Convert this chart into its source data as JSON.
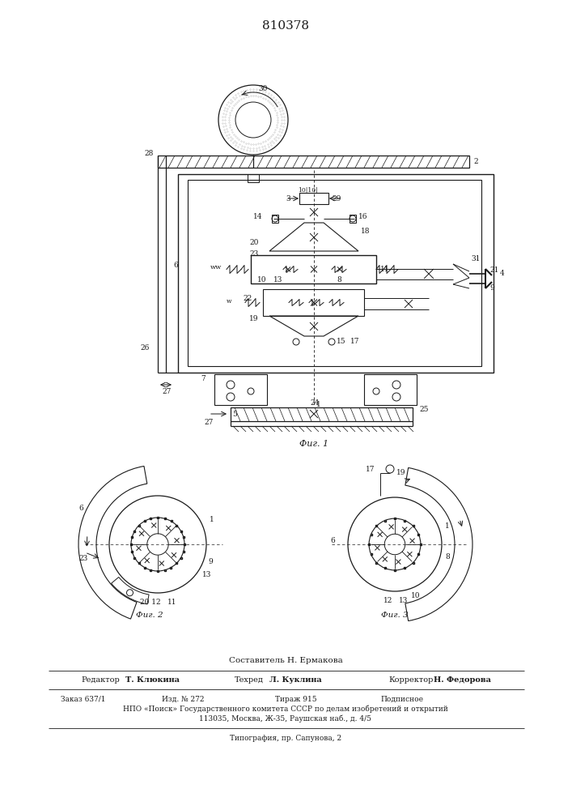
{
  "title": "810378",
  "fig1_label": "Фиг. 1",
  "fig2_label": "Фиг. 2",
  "fig3_label": "Фиг. 3",
  "bg_color": "#ffffff",
  "lc": "#1a1a1a",
  "footer_author": "Составитель Н. Ермакова",
  "footer_r1c1": "Редактор",
  "footer_r1c1b": "Т. Клюкина",
  "footer_r1c2": "Техред",
  "footer_r1c2b": "Л. Куклина",
  "footer_r1c3": "Корректор",
  "footer_r1c3b": "Н. Федорова",
  "footer_r2l1": "Заказ 637/1",
  "footer_r2l2": "Изд. № 272",
  "footer_r2l3": "Тираж 915",
  "footer_r2l4": "Подписное",
  "footer_r3": "НПО «Поиск» Государственного комитета СССР по делам изобретений и открытий",
  "footer_r4": "113035, Москва, Ж-35, Раушская наб., д. 4/5",
  "footer_r5": "Типография, пр. Сапунова, 2"
}
